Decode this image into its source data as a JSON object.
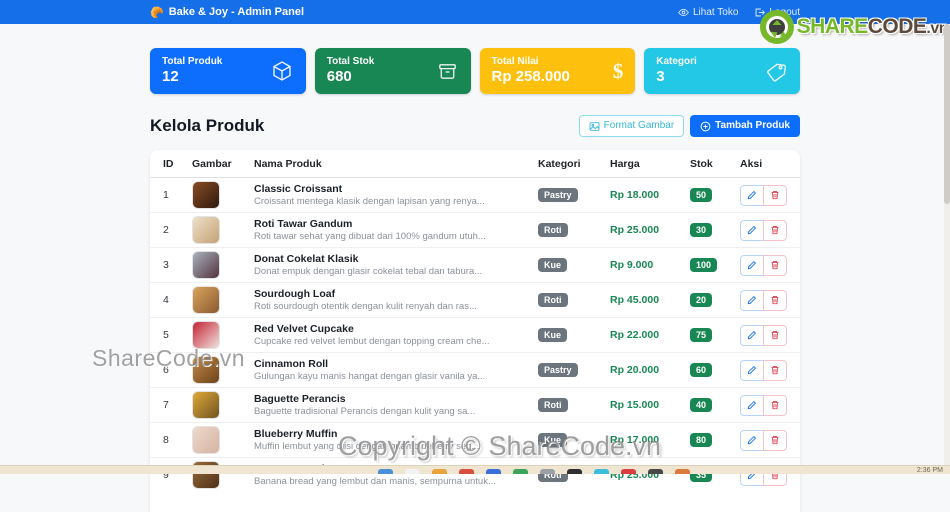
{
  "navbar": {
    "brand_icon": "🥐",
    "brand": "Bake & Joy - Admin Panel",
    "links": [
      {
        "label": "Lihat Toko",
        "icon": "eye-icon"
      },
      {
        "label": "Logout",
        "icon": "logout-icon"
      }
    ]
  },
  "stats": [
    {
      "label": "Total Produk",
      "value": "12",
      "color": "#0d6efd",
      "icon": "box-icon"
    },
    {
      "label": "Total Stok",
      "value": "680",
      "color": "#198754",
      "icon": "archive-icon"
    },
    {
      "label": "Total Nilai",
      "value": "Rp 258.000",
      "color": "#fdc10d",
      "icon": "dollar-icon"
    },
    {
      "label": "Kategori",
      "value": "3",
      "color": "#22c8e5",
      "icon": "tag-icon"
    }
  ],
  "page": {
    "title": "Kelola Produk",
    "format_button": "Format Gambar",
    "add_button": "Tambah Produk"
  },
  "table": {
    "headers": [
      "ID",
      "Gambar",
      "Nama Produk",
      "Kategori",
      "Harga",
      "Stok",
      "Aksi"
    ],
    "products": [
      {
        "id": "1",
        "name": "Classic Croissant",
        "desc": "Croissant mentega klasik dengan lapisan yang renya...",
        "category": "Pastry",
        "price": "Rp 18.000",
        "stock": "50",
        "thumb": [
          "#8a4b22",
          "#2e1a10"
        ]
      },
      {
        "id": "2",
        "name": "Roti Tawar Gandum",
        "desc": "Roti tawar sehat yang dibuat dari 100% gandum utuh...",
        "category": "Roti",
        "price": "Rp 25.000",
        "stock": "30",
        "thumb": [
          "#ede0c8",
          "#c5a276"
        ]
      },
      {
        "id": "3",
        "name": "Donat Cokelat Klasik",
        "desc": "Donat empuk dengan glasir cokelat tebal dan tabura...",
        "category": "Kue",
        "price": "Rp 9.000",
        "stock": "100",
        "thumb": [
          "#aab4c0",
          "#53323d"
        ]
      },
      {
        "id": "4",
        "name": "Sourdough Loaf",
        "desc": "Roti sourdough otentik dengan kulit renyah dan ras...",
        "category": "Roti",
        "price": "Rp 45.000",
        "stock": "20",
        "thumb": [
          "#d9a560",
          "#8a5a2e"
        ]
      },
      {
        "id": "5",
        "name": "Red Velvet Cupcake",
        "desc": "Cupcake red velvet lembut dengan topping cream che...",
        "category": "Kue",
        "price": "Rp 22.000",
        "stock": "75",
        "thumb": [
          "#c42435",
          "#f0e2de"
        ]
      },
      {
        "id": "6",
        "name": "Cinnamon Roll",
        "desc": "Gulungan kayu manis hangat dengan glasir vanila ya...",
        "category": "Pastry",
        "price": "Rp 20.000",
        "stock": "60",
        "thumb": [
          "#c08a4a",
          "#6e4218"
        ]
      },
      {
        "id": "7",
        "name": "Baguette Perancis",
        "desc": "Baguette tradisional Perancis dengan kulit yang sa...",
        "category": "Roti",
        "price": "Rp 15.000",
        "stock": "40",
        "thumb": [
          "#e0a83a",
          "#705420"
        ]
      },
      {
        "id": "8",
        "name": "Blueberry Muffin",
        "desc": "Muffin lembut yang diisi dengan buah blueberry seg...",
        "category": "Kue",
        "price": "Rp 17.000",
        "stock": "80",
        "thumb": [
          "#ecd9cc",
          "#d7b3a2"
        ]
      },
      {
        "id": "9",
        "name": "Banana Bread",
        "desc": "Banana bread yang lembut dan manis, sempurna untuk...",
        "category": "Roti",
        "price": "Rp 25.000",
        "stock": "35",
        "thumb": [
          "#9a6a3a",
          "#4e3018"
        ]
      }
    ]
  },
  "watermarks": {
    "logo_share": "SHARE",
    "logo_code": "CODE",
    "logo_tld": ".vn",
    "side": "ShareCode.vn",
    "bottom": "Copyright © ShareCode.vn"
  },
  "taskbar": {
    "time": "2:36 PM"
  }
}
